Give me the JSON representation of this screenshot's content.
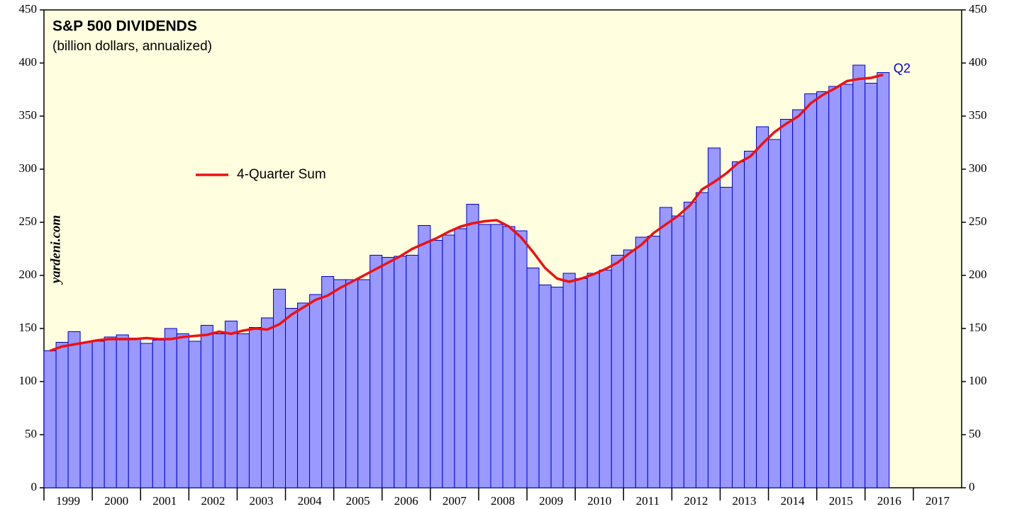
{
  "chart_data": {
    "type": "bar",
    "title": "S&P 500 DIVIDENDS",
    "subtitle": "(billion dollars, annualized)",
    "annotations": [
      "yardeni.com",
      "Q2"
    ],
    "x": [
      1999,
      1999.25,
      1999.5,
      1999.75,
      2000,
      2000.25,
      2000.5,
      2000.75,
      2001,
      2001.25,
      2001.5,
      2001.75,
      2002,
      2002.25,
      2002.5,
      2002.75,
      2003,
      2003.25,
      2003.5,
      2003.75,
      2004,
      2004.25,
      2004.5,
      2004.75,
      2005,
      2005.25,
      2005.5,
      2005.75,
      2006,
      2006.25,
      2006.5,
      2006.75,
      2007,
      2007.25,
      2007.5,
      2007.75,
      2008,
      2008.25,
      2008.5,
      2008.75,
      2009,
      2009.25,
      2009.5,
      2009.75,
      2010,
      2010.25,
      2010.5,
      2010.75,
      2011,
      2011.25,
      2011.5,
      2011.75,
      2012,
      2012.25,
      2012.5,
      2012.75,
      2013,
      2013.25,
      2013.5,
      2013.75,
      2014,
      2014.25,
      2014.5,
      2014.75,
      2015,
      2015.25,
      2015.5,
      2015.75,
      2016,
      2016.25
    ],
    "values": [
      129,
      137,
      147,
      137,
      138,
      142,
      144,
      141,
      136,
      139,
      150,
      145,
      138,
      153,
      145,
      157,
      145,
      151,
      160,
      187,
      169,
      174,
      182,
      199,
      196,
      196,
      196,
      219,
      217,
      218,
      219,
      247,
      233,
      238,
      244,
      267,
      248,
      248,
      246,
      242,
      207,
      191,
      189,
      202,
      197,
      202,
      205,
      219,
      224,
      236,
      237,
      264,
      256,
      269,
      278,
      320,
      283,
      307,
      317,
      340,
      328,
      347,
      356,
      371,
      373,
      378,
      380,
      398,
      381,
      391
    ],
    "color": "#9999ff",
    "edge_color": "#0000cc",
    "series": [
      {
        "name": "4-Quarter Sum",
        "color": "#ee1111",
        "values": [
          129,
          133,
          135,
          137,
          139,
          140,
          140,
          140,
          141,
          140,
          140,
          142,
          143,
          144,
          147,
          145,
          148,
          150,
          149,
          154,
          163,
          170,
          177,
          181,
          188,
          194,
          200,
          206,
          212,
          218,
          225,
          230,
          235,
          241,
          246,
          249,
          251,
          252,
          246,
          236,
          222,
          207,
          197,
          194,
          197,
          201,
          206,
          212,
          221,
          229,
          240,
          248,
          256,
          266,
          281,
          288,
          296,
          306,
          312,
          324,
          335,
          343,
          350,
          362,
          370,
          376,
          383,
          385,
          386,
          389
        ]
      }
    ],
    "xlim": [
      1999,
      2018
    ],
    "xticks": [
      1999,
      2000,
      2001,
      2002,
      2003,
      2004,
      2005,
      2006,
      2007,
      2008,
      2009,
      2010,
      2011,
      2012,
      2013,
      2014,
      2015,
      2016,
      2017
    ],
    "ylim": [
      0,
      450
    ],
    "yticks": [
      0,
      50,
      100,
      150,
      200,
      250,
      300,
      350,
      400,
      450
    ],
    "y2lim": [
      0,
      450
    ],
    "y2ticks": [
      0,
      50,
      100,
      150,
      200,
      250,
      300,
      350,
      400,
      450
    ],
    "plot_background": "#ffffe0"
  }
}
